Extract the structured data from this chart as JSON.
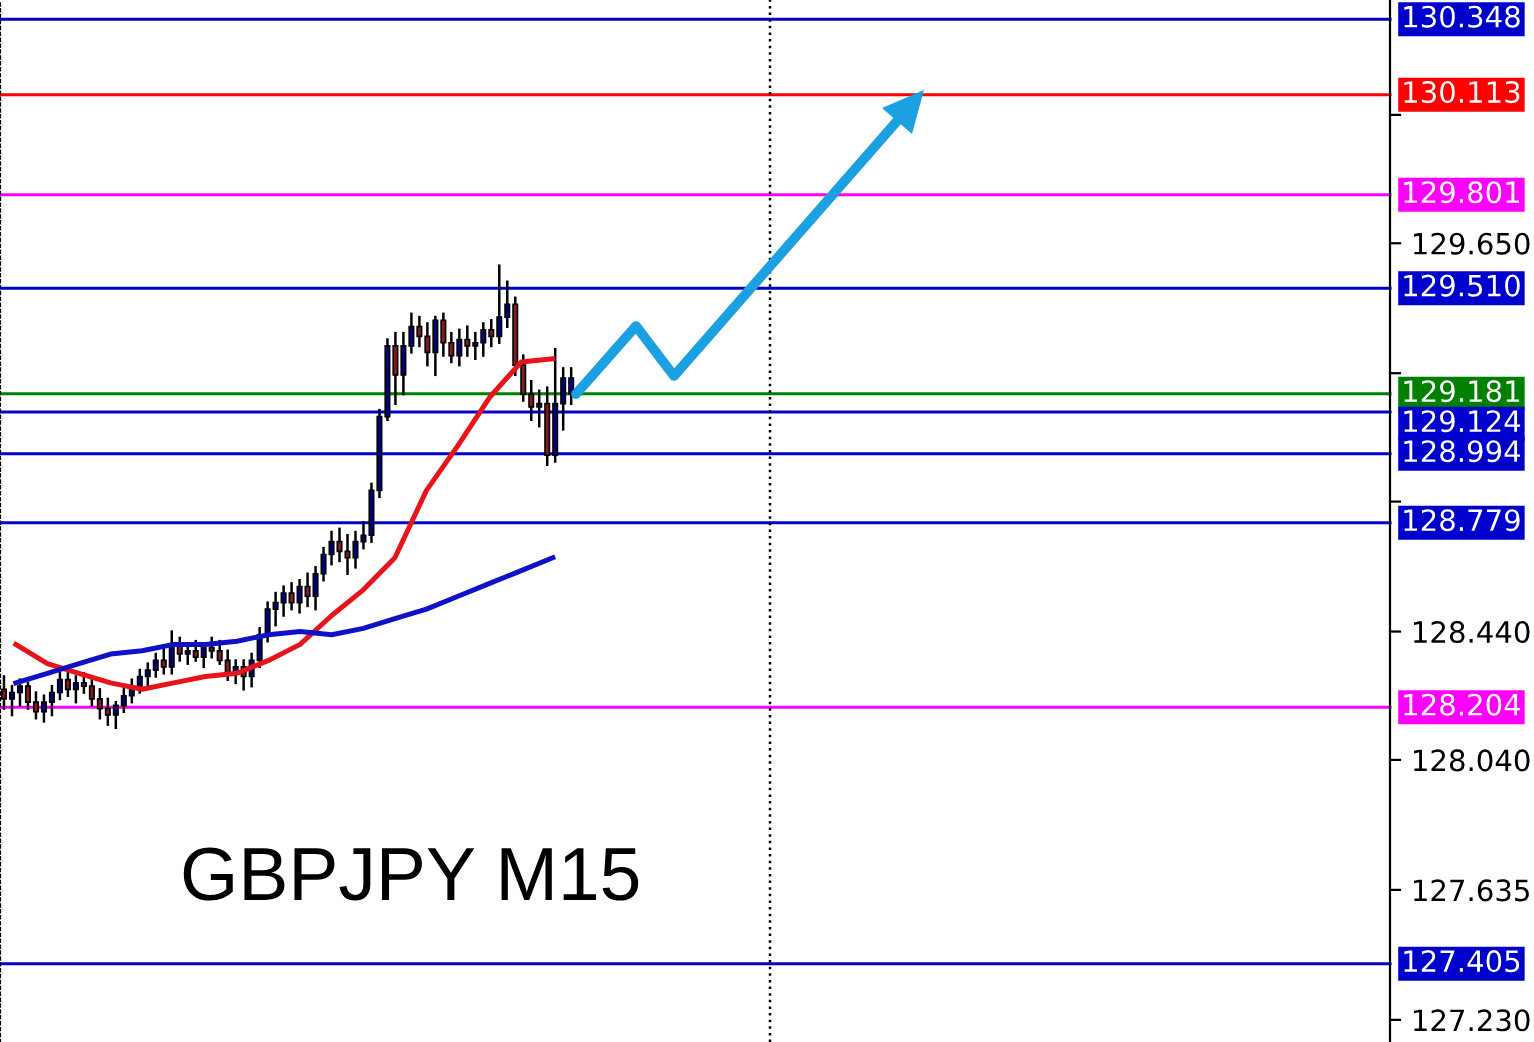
{
  "chart_data": [
    {
      "type": "candlestick",
      "title": "GBPJPY M15",
      "tick_labels": "y",
      "grid": false,
      "categories": [
        null,
        null,
        null,
        null,
        null,
        null,
        null,
        null,
        null,
        null,
        null,
        null,
        null,
        null,
        null,
        null,
        null,
        null,
        null,
        null,
        null,
        null,
        null,
        null,
        null,
        null,
        null,
        null,
        null,
        null,
        null,
        null,
        null,
        null,
        null,
        null,
        null,
        null,
        null,
        null,
        null,
        null,
        null,
        null,
        null,
        null,
        null,
        null,
        null,
        null,
        null,
        null,
        null,
        null,
        null,
        null,
        null,
        null,
        null,
        null,
        null,
        null,
        null,
        null,
        null,
        null,
        null,
        null,
        null,
        null,
        null,
        null,
        null,
        null,
        null,
        null,
        null,
        null,
        null,
        null,
        null,
        null,
        null,
        null,
        null,
        null,
        null,
        null,
        null,
        null,
        null,
        null,
        null,
        null,
        null,
        null,
        null,
        null,
        null,
        null,
        null,
        null,
        null,
        null,
        null,
        null,
        null,
        null,
        null,
        null,
        null,
        null,
        null,
        null,
        null,
        null,
        null,
        null,
        null,
        null,
        null,
        null,
        null,
        null,
        null,
        null,
        null,
        null,
        null,
        null,
        null,
        null,
        null,
        null,
        null,
        null,
        null,
        null,
        null,
        null,
        null,
        null,
        null,
        null,
        null,
        null,
        null,
        null,
        null,
        null,
        null,
        null,
        null,
        null,
        null,
        null,
        null,
        null,
        null,
        null,
        null,
        null,
        null,
        null,
        null,
        null,
        null,
        null,
        null,
        null,
        null,
        null,
        null,
        null
      ],
      "ylim": [
        127.161,
        130.408
      ],
      "yticks": [
        {
          "value": 127.23,
          "label": "127.230"
        },
        {
          "value": 127.635,
          "label": "127.635"
        },
        {
          "value": 128.04,
          "label": "128.040"
        },
        {
          "value": 128.44,
          "label": "128.440"
        },
        {
          "value": 128.845,
          "label": null
        },
        {
          "value": 129.245,
          "label": null
        },
        {
          "value": 129.65,
          "label": "129.650"
        },
        {
          "value": 130.05,
          "label": null
        }
      ],
      "ohlc": [
        [
          128.26,
          128.3,
          128.2,
          128.23
        ],
        [
          128.23,
          128.27,
          128.18,
          128.25
        ],
        [
          128.25,
          128.29,
          128.21,
          128.27
        ],
        [
          128.27,
          128.28,
          128.2,
          128.22
        ],
        [
          128.22,
          128.25,
          128.17,
          128.19
        ],
        [
          128.19,
          128.24,
          128.16,
          128.22
        ],
        [
          128.22,
          128.27,
          128.18,
          128.25
        ],
        [
          128.25,
          128.31,
          128.23,
          128.29
        ],
        [
          128.29,
          128.33,
          128.24,
          128.26
        ],
        [
          128.26,
          128.3,
          128.22,
          128.28
        ],
        [
          128.28,
          128.31,
          128.25,
          128.27
        ],
        [
          128.27,
          128.29,
          128.21,
          128.23
        ],
        [
          128.23,
          128.26,
          128.17,
          128.2
        ],
        [
          128.2,
          128.23,
          128.15,
          128.18
        ],
        [
          128.18,
          128.22,
          128.14,
          128.21
        ],
        [
          128.21,
          128.26,
          128.19,
          128.24
        ],
        [
          128.24,
          128.29,
          128.22,
          128.27
        ],
        [
          128.27,
          128.32,
          128.25,
          128.3
        ],
        [
          128.3,
          128.34,
          128.27,
          128.32
        ],
        [
          128.32,
          128.37,
          128.3,
          128.35
        ],
        [
          128.35,
          128.39,
          128.31,
          128.33
        ],
        [
          128.33,
          128.44,
          128.31,
          128.4
        ],
        [
          128.4,
          128.42,
          128.35,
          128.37
        ],
        [
          128.37,
          128.4,
          128.34,
          128.38
        ],
        [
          128.38,
          128.41,
          128.35,
          128.36
        ],
        [
          128.36,
          128.4,
          128.33,
          128.39
        ],
        [
          128.39,
          128.42,
          128.36,
          128.38
        ],
        [
          128.38,
          128.41,
          128.34,
          128.35
        ],
        [
          128.35,
          128.38,
          128.29,
          128.31
        ],
        [
          128.31,
          128.35,
          128.28,
          128.33
        ],
        [
          128.33,
          128.35,
          128.26,
          128.3
        ],
        [
          128.3,
          128.37,
          128.27,
          128.35
        ],
        [
          128.35,
          128.45,
          128.33,
          128.43
        ],
        [
          128.43,
          128.53,
          128.41,
          128.51
        ],
        [
          128.51,
          128.56,
          128.46,
          128.53
        ],
        [
          128.53,
          128.58,
          128.49,
          128.56
        ],
        [
          128.56,
          128.59,
          128.51,
          128.53
        ],
        [
          128.53,
          128.6,
          128.5,
          128.58
        ],
        [
          128.58,
          128.62,
          128.52,
          128.55
        ],
        [
          128.55,
          128.64,
          128.51,
          128.62
        ],
        [
          128.62,
          128.7,
          128.6,
          128.68
        ],
        [
          128.68,
          128.75,
          128.65,
          128.72
        ],
        [
          128.72,
          128.76,
          128.66,
          128.69
        ],
        [
          128.69,
          128.74,
          128.62,
          128.67
        ],
        [
          128.67,
          128.75,
          128.64,
          128.72
        ],
        [
          128.72,
          128.78,
          128.7,
          128.74
        ],
        [
          128.74,
          128.9,
          128.72,
          128.88
        ],
        [
          128.88,
          129.13,
          128.86,
          129.11
        ],
        [
          129.11,
          129.35,
          129.1,
          129.33
        ],
        [
          129.33,
          129.37,
          129.15,
          129.24
        ],
        [
          129.24,
          129.37,
          129.18,
          129.33
        ],
        [
          129.33,
          129.43,
          129.31,
          129.39
        ],
        [
          129.39,
          129.42,
          129.33,
          129.36
        ],
        [
          129.36,
          129.4,
          129.27,
          129.31
        ],
        [
          129.31,
          129.42,
          129.24,
          129.41
        ],
        [
          129.41,
          129.43,
          129.3,
          129.34
        ],
        [
          129.34,
          129.37,
          129.28,
          129.3
        ],
        [
          129.3,
          129.38,
          129.27,
          129.35
        ],
        [
          129.35,
          129.39,
          129.3,
          129.33
        ],
        [
          129.33,
          129.37,
          129.29,
          129.34
        ],
        [
          129.34,
          129.4,
          129.3,
          129.38
        ],
        [
          129.38,
          129.41,
          129.33,
          129.36
        ],
        [
          129.36,
          129.58,
          129.34,
          129.42
        ],
        [
          129.42,
          129.53,
          129.39,
          129.46
        ],
        [
          129.46,
          129.48,
          129.24,
          129.27
        ],
        [
          129.27,
          129.3,
          129.16,
          129.18
        ],
        [
          129.18,
          129.22,
          129.1,
          129.14
        ],
        [
          129.14,
          129.19,
          129.08,
          129.15
        ],
        [
          129.15,
          129.2,
          128.96,
          128.99
        ],
        [
          128.99,
          129.32,
          128.97,
          129.15
        ],
        [
          129.15,
          129.26,
          129.07,
          129.23
        ],
        [
          129.18,
          129.26,
          129.15,
          129.23
        ],
        null,
        null,
        null,
        null,
        null,
        null,
        null,
        null,
        null,
        null,
        null,
        null,
        null,
        null,
        null,
        null,
        null,
        null,
        null,
        null,
        null,
        null,
        null,
        null,
        null,
        null,
        null,
        null,
        null,
        null,
        null,
        null,
        null,
        null,
        null,
        null,
        null,
        null,
        null,
        null,
        null,
        null,
        null,
        null,
        null,
        null,
        null,
        null,
        null,
        null,
        null,
        null,
        null,
        null,
        null,
        null,
        null,
        null,
        null,
        null,
        null,
        null,
        null,
        null,
        null,
        null,
        null,
        null,
        null,
        null,
        null,
        null,
        null,
        null,
        null,
        null,
        null,
        null,
        null,
        null,
        null,
        null,
        null,
        null,
        null,
        null,
        null,
        null,
        null,
        null,
        null,
        null,
        null,
        null,
        null,
        null,
        null,
        null,
        null,
        null,
        null,
        null
      ],
      "colors": [
        "#8b1a1a",
        "#000080",
        "#000080",
        "#8b1a1a",
        "#8b1a1a",
        "#000080",
        "#000080",
        "#000080",
        "#8b1a1a",
        "#000080",
        "#8b1a1a",
        "#8b1a1a",
        "#8b1a1a",
        "#8b1a1a",
        "#000080",
        "#000080",
        "#000080",
        "#000080",
        "#000080",
        "#000080",
        "#8b1a1a",
        "#000080",
        "#8b1a1a",
        "#000080",
        "#8b1a1a",
        "#000080",
        "#8b1a1a",
        "#8b1a1a",
        "#8b1a1a",
        "#000080",
        "#8b1a1a",
        "#000080",
        "#000080",
        "#000080",
        "#000080",
        "#000080",
        "#8b1a1a",
        "#000080",
        "#8b1a1a",
        "#000080",
        "#000080",
        "#000080",
        "#8b1a1a",
        "#8b1a1a",
        "#000080",
        "#000080",
        "#000080",
        "#000080",
        "#000080",
        "#8b1a1a",
        "#000080",
        "#000080",
        "#8b1a1a",
        "#8b1a1a",
        "#000080",
        "#8b1a1a",
        "#8b1a1a",
        "#000080",
        "#8b1a1a",
        "#000080",
        "#000080",
        "#8b1a1a",
        "#000080",
        "#000080",
        "#8b1a1a",
        "#8b1a1a",
        "#8b1a1a",
        "#000080",
        "#8b1a1a",
        "#000080",
        "#000080",
        "#000080",
        null,
        null,
        null,
        null,
        null,
        null,
        null,
        null,
        null,
        null,
        null,
        null,
        null,
        null,
        null,
        null,
        null,
        null,
        null,
        null,
        null,
        null,
        null,
        null,
        null,
        null,
        null,
        null,
        null,
        null,
        null,
        null,
        null,
        null,
        null,
        null,
        null,
        null,
        null,
        null,
        null,
        null,
        null,
        null,
        null,
        null,
        null,
        null,
        null,
        null,
        null,
        null,
        null,
        null,
        null,
        null,
        null,
        null,
        null,
        null,
        null,
        null,
        null,
        null,
        null,
        null,
        null,
        null,
        null,
        null,
        null,
        null,
        null,
        null,
        null,
        null,
        null,
        null,
        null,
        null,
        null,
        null,
        null,
        null,
        null,
        null,
        null,
        null,
        null,
        null,
        null,
        null,
        null,
        null,
        null,
        null,
        null,
        null,
        null,
        null,
        null,
        null
      ],
      "ref_lines": [
        {
          "axis": "y",
          "value": 130.348,
          "label": "130.348",
          "color": "#0000cc"
        },
        {
          "axis": "y",
          "value": 130.113,
          "label": "130.113",
          "color": "#ff0000"
        },
        {
          "axis": "y",
          "value": 129.801,
          "label": "129.801",
          "color": "#ff00ff"
        },
        {
          "axis": "y",
          "value": 129.51,
          "label": "129.510",
          "color": "#0000cc"
        },
        {
          "axis": "y",
          "value": 129.181,
          "label": "129.181",
          "color": "#008000"
        },
        {
          "axis": "y",
          "value": 129.124,
          "label": "129.124",
          "color": "#0000cc"
        },
        {
          "axis": "y",
          "value": 128.994,
          "label": "128.994",
          "color": "#0000cc"
        },
        {
          "axis": "y",
          "value": 128.779,
          "label": "128.779",
          "color": "#0000cc"
        },
        {
          "axis": "y",
          "value": 128.204,
          "label": "128.204",
          "color": "#ff00ff"
        },
        {
          "axis": "y",
          "value": 127.405,
          "label": "127.405",
          "color": "#0000cc"
        }
      ]
    },
    {
      "type": "line",
      "tick_labels": false,
      "grid": false,
      "categories": [
        null,
        null,
        null,
        null,
        null,
        null,
        null,
        null,
        null,
        null,
        null,
        null,
        null,
        null,
        null,
        null,
        null,
        null,
        null,
        null,
        null,
        null,
        null,
        null,
        null,
        null,
        null,
        null,
        null,
        null,
        null,
        null,
        null,
        null,
        null,
        null,
        null,
        null,
        null,
        null,
        null,
        null,
        null,
        null
      ],
      "ylim": [
        127.161,
        130.408
      ],
      "series": [
        {
          "color": "#e8141b",
          "values": [
            128.4,
            128.34,
            128.31,
            128.28,
            128.26,
            128.28,
            128.3,
            128.31,
            128.35,
            128.4,
            128.49,
            128.57,
            128.67,
            128.88,
            129.02,
            129.17,
            129.28,
            129.29,
            null,
            null,
            null,
            null,
            null,
            null,
            null,
            null,
            null,
            null,
            null,
            null,
            null,
            null,
            null,
            null,
            null,
            null,
            null,
            null,
            null,
            null,
            null,
            null,
            null,
            null
          ]
        },
        {
          "color": "#1010c8",
          "values": [
            128.28,
            128.31,
            128.34,
            128.37,
            128.38,
            128.4,
            128.4,
            128.41,
            128.43,
            128.44,
            128.43,
            128.45,
            128.48,
            128.51,
            128.55,
            128.59,
            128.63,
            128.67,
            null,
            null,
            null,
            null,
            null,
            null,
            null,
            null,
            null,
            null,
            null,
            null,
            null,
            null,
            null,
            null,
            null,
            null,
            null,
            null,
            null,
            null,
            null,
            null,
            null,
            null
          ]
        }
      ]
    }
  ]
}
